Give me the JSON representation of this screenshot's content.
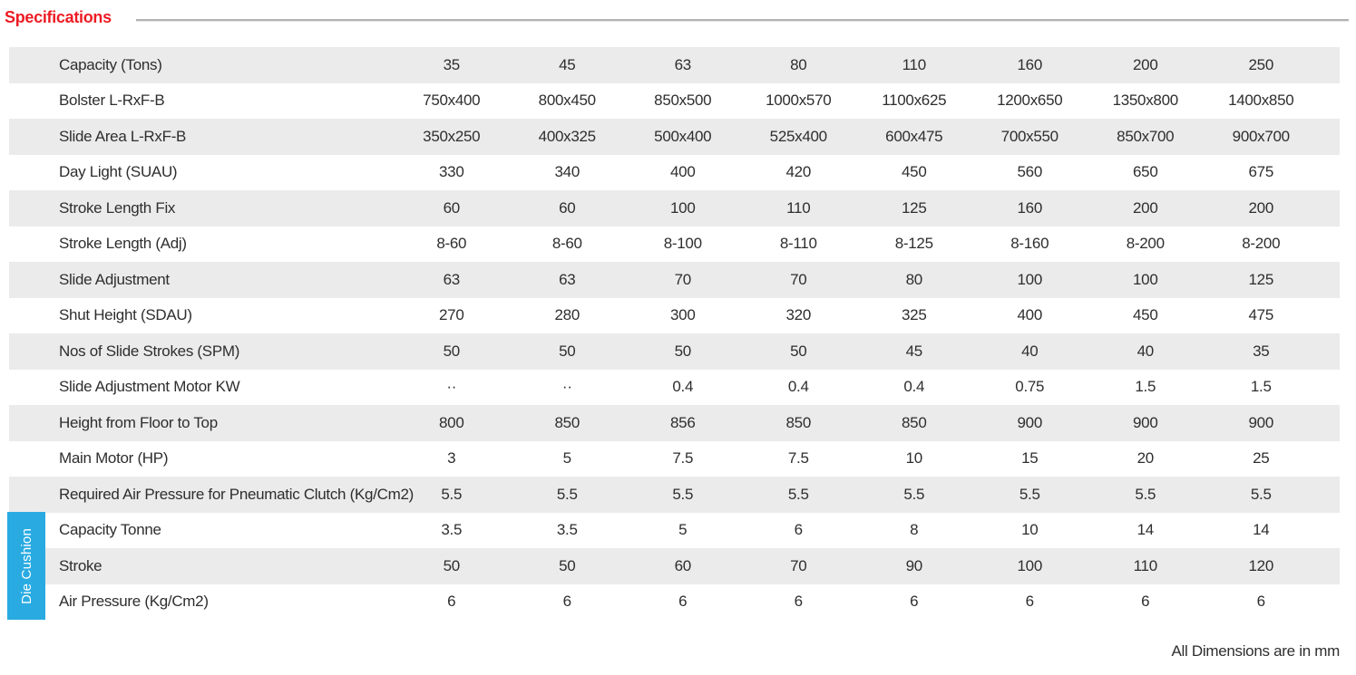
{
  "title": "Specifications",
  "side_label": "Die Cushion",
  "footer_note": "All Dimensions are in mm",
  "colors": {
    "accent_red": "#ED1C24",
    "accent_blue": "#29ABE2",
    "row_gray": "#EBEBEB",
    "text": "#2E2E2E",
    "rule_gray": "#B3B3B3"
  },
  "rows": [
    {
      "label": "Capacity (Tons)",
      "values": [
        "35",
        "45",
        "63",
        "80",
        "110",
        "160",
        "200",
        "250"
      ]
    },
    {
      "label": "Bolster L-RxF-B",
      "values": [
        "750x400",
        "800x450",
        "850x500",
        "1000x570",
        "1100x625",
        "1200x650",
        "1350x800",
        "1400x850"
      ]
    },
    {
      "label": "Slide Area L-RxF-B",
      "values": [
        "350x250",
        "400x325",
        "500x400",
        "525x400",
        "600x475",
        "700x550",
        "850x700",
        "900x700"
      ]
    },
    {
      "label": "Day Light (SUAU)",
      "values": [
        "330",
        "340",
        "400",
        "420",
        "450",
        "560",
        "650",
        "675"
      ]
    },
    {
      "label": "Stroke Length Fix",
      "values": [
        "60",
        "60",
        "100",
        "110",
        "125",
        "160",
        "200",
        "200"
      ]
    },
    {
      "label": "Stroke Length (Adj)",
      "values": [
        "8-60",
        "8-60",
        "8-100",
        "8-110",
        "8-125",
        "8-160",
        "8-200",
        "8-200"
      ]
    },
    {
      "label": "Slide Adjustment",
      "values": [
        "63",
        "63",
        "70",
        "70",
        "80",
        "100",
        "100",
        "125"
      ]
    },
    {
      "label": "Shut Height (SDAU)",
      "values": [
        "270",
        "280",
        "300",
        "320",
        "325",
        "400",
        "450",
        "475"
      ]
    },
    {
      "label": "Nos of Slide Strokes (SPM)",
      "values": [
        "50",
        "50",
        "50",
        "50",
        "45",
        "40",
        "40",
        "35"
      ]
    },
    {
      "label": "Slide Adjustment Motor KW",
      "values": [
        "··",
        "··",
        "0.4",
        "0.4",
        "0.4",
        "0.75",
        "1.5",
        "1.5"
      ]
    },
    {
      "label": "Height from Floor to Top",
      "values": [
        "800",
        "850",
        "856",
        "850",
        "850",
        "900",
        "900",
        "900"
      ]
    },
    {
      "label": "Main Motor (HP)",
      "values": [
        "3",
        "5",
        "7.5",
        "7.5",
        "10",
        "15",
        "20",
        "25"
      ]
    },
    {
      "label": "Required Air Pressure for Pneumatic Clutch (Kg/Cm2)",
      "values": [
        "5.5",
        "5.5",
        "5.5",
        "5.5",
        "5.5",
        "5.5",
        "5.5",
        "5.5"
      ]
    },
    {
      "label": "Capacity Tonne",
      "values": [
        "3.5",
        "3.5",
        "5",
        "6",
        "8",
        "10",
        "14",
        "14"
      ],
      "group": "Die Cushion"
    },
    {
      "label": "Stroke",
      "values": [
        "50",
        "50",
        "60",
        "70",
        "90",
        "100",
        "110",
        "120"
      ],
      "group": "Die Cushion"
    },
    {
      "label": "Air Pressure (Kg/Cm2)",
      "values": [
        "6",
        "6",
        "6",
        "6",
        "6",
        "6",
        "6",
        "6"
      ],
      "group": "Die Cushion"
    }
  ]
}
